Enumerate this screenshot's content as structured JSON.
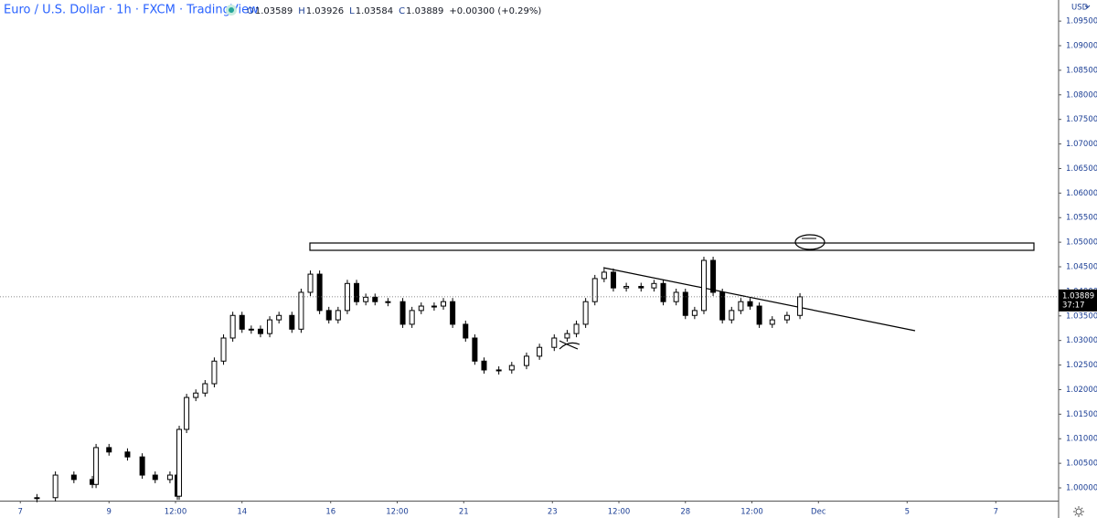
{
  "chart_data": {
    "type": "candlestick",
    "title": "Euro / U.S. Dollar · 1h · FXCM · TradingView",
    "ohlc_legend": [
      {
        "key": "O",
        "text": "1.03589"
      },
      {
        "key": "H",
        "text": "1.03926"
      },
      {
        "key": "L",
        "text": "1.03584"
      },
      {
        "key": "C",
        "text": "1.03889"
      }
    ],
    "change": "+0.00300 (+0.29%)",
    "currency": "USD",
    "last_price": {
      "value": 1.03889,
      "label": "1.03889"
    },
    "countdown": "37:17",
    "x": [
      20,
      30,
      40,
      50,
      52,
      59,
      69,
      77,
      84,
      92,
      96,
      97,
      101,
      106,
      111,
      116,
      121,
      126,
      131,
      136,
      141,
      146,
      151,
      158,
      163,
      168,
      173,
      178,
      183,
      188,
      193,
      198,
      203,
      210,
      218,
      223,
      228,
      235,
      240,
      245,
      252,
      257,
      262,
      270,
      277,
      285,
      292,
      300,
      307,
      312,
      317,
      322,
      327,
      332,
      339,
      347,
      354,
      359,
      366,
      371,
      376,
      381,
      386,
      391,
      396,
      401,
      406,
      411,
      418,
      426,
      433
    ],
    "series": [
      {
        "name": "EURUSD",
        "up_color": "#ffffff",
        "down_color": "#000000",
        "values": [
          0.998,
          1.0026,
          1.0017,
          1.0007,
          1.0082,
          1.0073,
          1.0063,
          1.0026,
          1.0017,
          1.0026,
          0.9983,
          1.0119,
          1.0184,
          1.0193,
          1.0212,
          1.0258,
          1.0305,
          1.0351,
          1.0323,
          1.0323,
          1.0314,
          1.0342,
          1.0351,
          1.0323,
          1.0398,
          1.0435,
          1.0361,
          1.0342,
          1.0361,
          1.0416,
          1.0379,
          1.0388,
          1.0379,
          1.0379,
          1.0333,
          1.0361,
          1.037,
          1.037,
          1.0379,
          1.0333,
          1.0305,
          1.0258,
          1.024,
          1.024,
          1.0249,
          1.0268,
          1.0286,
          1.0305,
          1.0314,
          1.0333,
          1.0379,
          1.0426,
          1.0439,
          1.0407,
          1.041,
          1.0407,
          1.0416,
          1.0379,
          1.0398,
          1.0351,
          1.0361,
          1.0463,
          1.0398,
          1.0342,
          1.0361,
          1.0379,
          1.037,
          1.0333,
          1.0342,
          1.0351,
          1.03889
        ]
      }
    ],
    "xlim": [
      0,
      573
    ],
    "xticks": [
      {
        "value": 11,
        "label": "7"
      },
      {
        "value": 59,
        "label": "9"
      },
      {
        "value": 95,
        "label": "12:00"
      },
      {
        "value": 131,
        "label": "14"
      },
      {
        "value": 179,
        "label": "16"
      },
      {
        "value": 215,
        "label": "12:00"
      },
      {
        "value": 251,
        "label": "21"
      },
      {
        "value": 299,
        "label": "23"
      },
      {
        "value": 335,
        "label": "12:00"
      },
      {
        "value": 371,
        "label": "28"
      },
      {
        "value": 407,
        "label": "12:00"
      },
      {
        "value": 443,
        "label": "Dec"
      },
      {
        "value": 491,
        "label": "5"
      },
      {
        "value": 539,
        "label": "7"
      }
    ],
    "ylim": [
      0.9974,
      1.0993
    ],
    "yticks": [
      {
        "value": 1.095,
        "label": "1.09500"
      },
      {
        "value": 1.09,
        "label": "1.09000"
      },
      {
        "value": 1.085,
        "label": "1.08500"
      },
      {
        "value": 1.08,
        "label": "1.08000"
      },
      {
        "value": 1.075,
        "label": "1.07500"
      },
      {
        "value": 1.07,
        "label": "1.07000"
      },
      {
        "value": 1.065,
        "label": "1.06500"
      },
      {
        "value": 1.06,
        "label": "1.06000"
      },
      {
        "value": 1.055,
        "label": "1.05500"
      },
      {
        "value": 1.05,
        "label": "1.05000"
      },
      {
        "value": 1.045,
        "label": "1.04500"
      },
      {
        "value": 1.04,
        "label": "1.04000"
      },
      {
        "value": 1.035,
        "label": "1.03500"
      },
      {
        "value": 1.03,
        "label": "1.03000"
      },
      {
        "value": 1.025,
        "label": "1.02500"
      },
      {
        "value": 1.02,
        "label": "1.02000"
      },
      {
        "value": 1.015,
        "label": "1.01500"
      },
      {
        "value": 1.01,
        "label": "1.01000"
      },
      {
        "value": 1.005,
        "label": "1.00500"
      },
      {
        "value": 1.0,
        "label": "1.00000"
      }
    ],
    "grid": false
  }
}
